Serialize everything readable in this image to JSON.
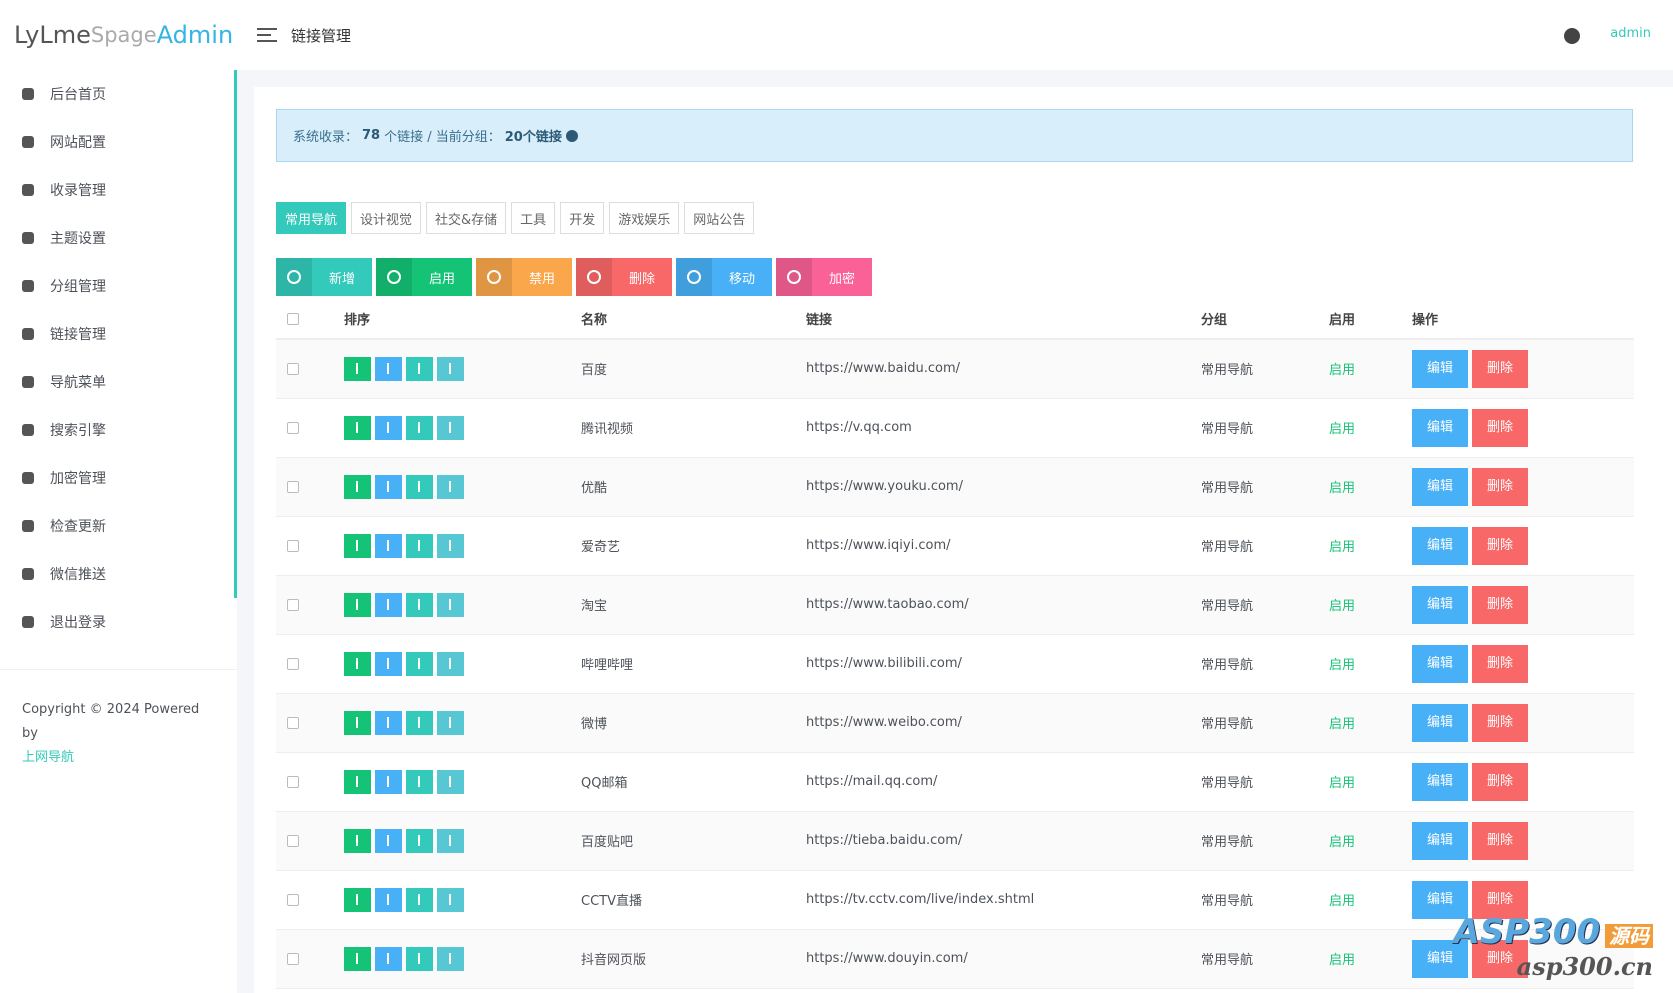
{
  "brand": {
    "ly": "LyLme",
    "spage": "Spage",
    "admin": "Admin"
  },
  "header": {
    "title": "链接管理",
    "user": "admin"
  },
  "sidebar": {
    "menu": [
      "后台首页",
      "网站配置",
      "收录管理",
      "主题设置",
      "分组管理",
      "链接管理",
      "导航菜单",
      "搜索引擎",
      "加密管理",
      "检查更新",
      "微信推送",
      "退出登录"
    ],
    "footer": {
      "copyright": "Copyright © 2024 Powered by",
      "link": "上网导航"
    }
  },
  "alert": {
    "prefix": "系统收录：",
    "total": "78",
    "mid": "个链接 / 当前分组：",
    "group": "20个链接"
  },
  "tabs": [
    "常用导航",
    "设计视觉",
    "社交&存储",
    "工具",
    "开发",
    "游戏娱乐",
    "网站公告"
  ],
  "toolbar": [
    "新增",
    "启用",
    "禁用",
    "删除",
    "移动",
    "加密"
  ],
  "table": {
    "headers": [
      "排序",
      "名称",
      "链接",
      "分组",
      "启用",
      "操作"
    ],
    "rows": [
      [
        "百度",
        "https://www.baidu.com/",
        "常用导航",
        "启用"
      ],
      [
        "腾讯视频",
        "https://v.qq.com",
        "常用导航",
        "启用"
      ],
      [
        "优酷",
        "https://www.youku.com/",
        "常用导航",
        "启用"
      ],
      [
        "爱奇艺",
        "https://www.iqiyi.com/",
        "常用导航",
        "启用"
      ],
      [
        "淘宝",
        "https://www.taobao.com/",
        "常用导航",
        "启用"
      ],
      [
        "哔哩哔哩",
        "https://www.bilibili.com/",
        "常用导航",
        "启用"
      ],
      [
        "微博",
        "https://www.weibo.com/",
        "常用导航",
        "启用"
      ],
      [
        "QQ邮箱",
        "https://mail.qq.com/",
        "常用导航",
        "启用"
      ],
      [
        "百度贴吧",
        "https://tieba.baidu.com/",
        "常用导航",
        "启用"
      ],
      [
        "CCTV直播",
        "https://tv.cctv.com/live/index.shtml",
        "常用导航",
        "启用"
      ],
      [
        "抖音网页版",
        "https://www.douyin.com/",
        "常用导航",
        "启用"
      ]
    ]
  },
  "actions": {
    "edit": "编辑",
    "delete": "删除"
  },
  "watermark": {
    "main": "ASP300",
    "tag": "源码",
    "site": "asp300.cn"
  }
}
